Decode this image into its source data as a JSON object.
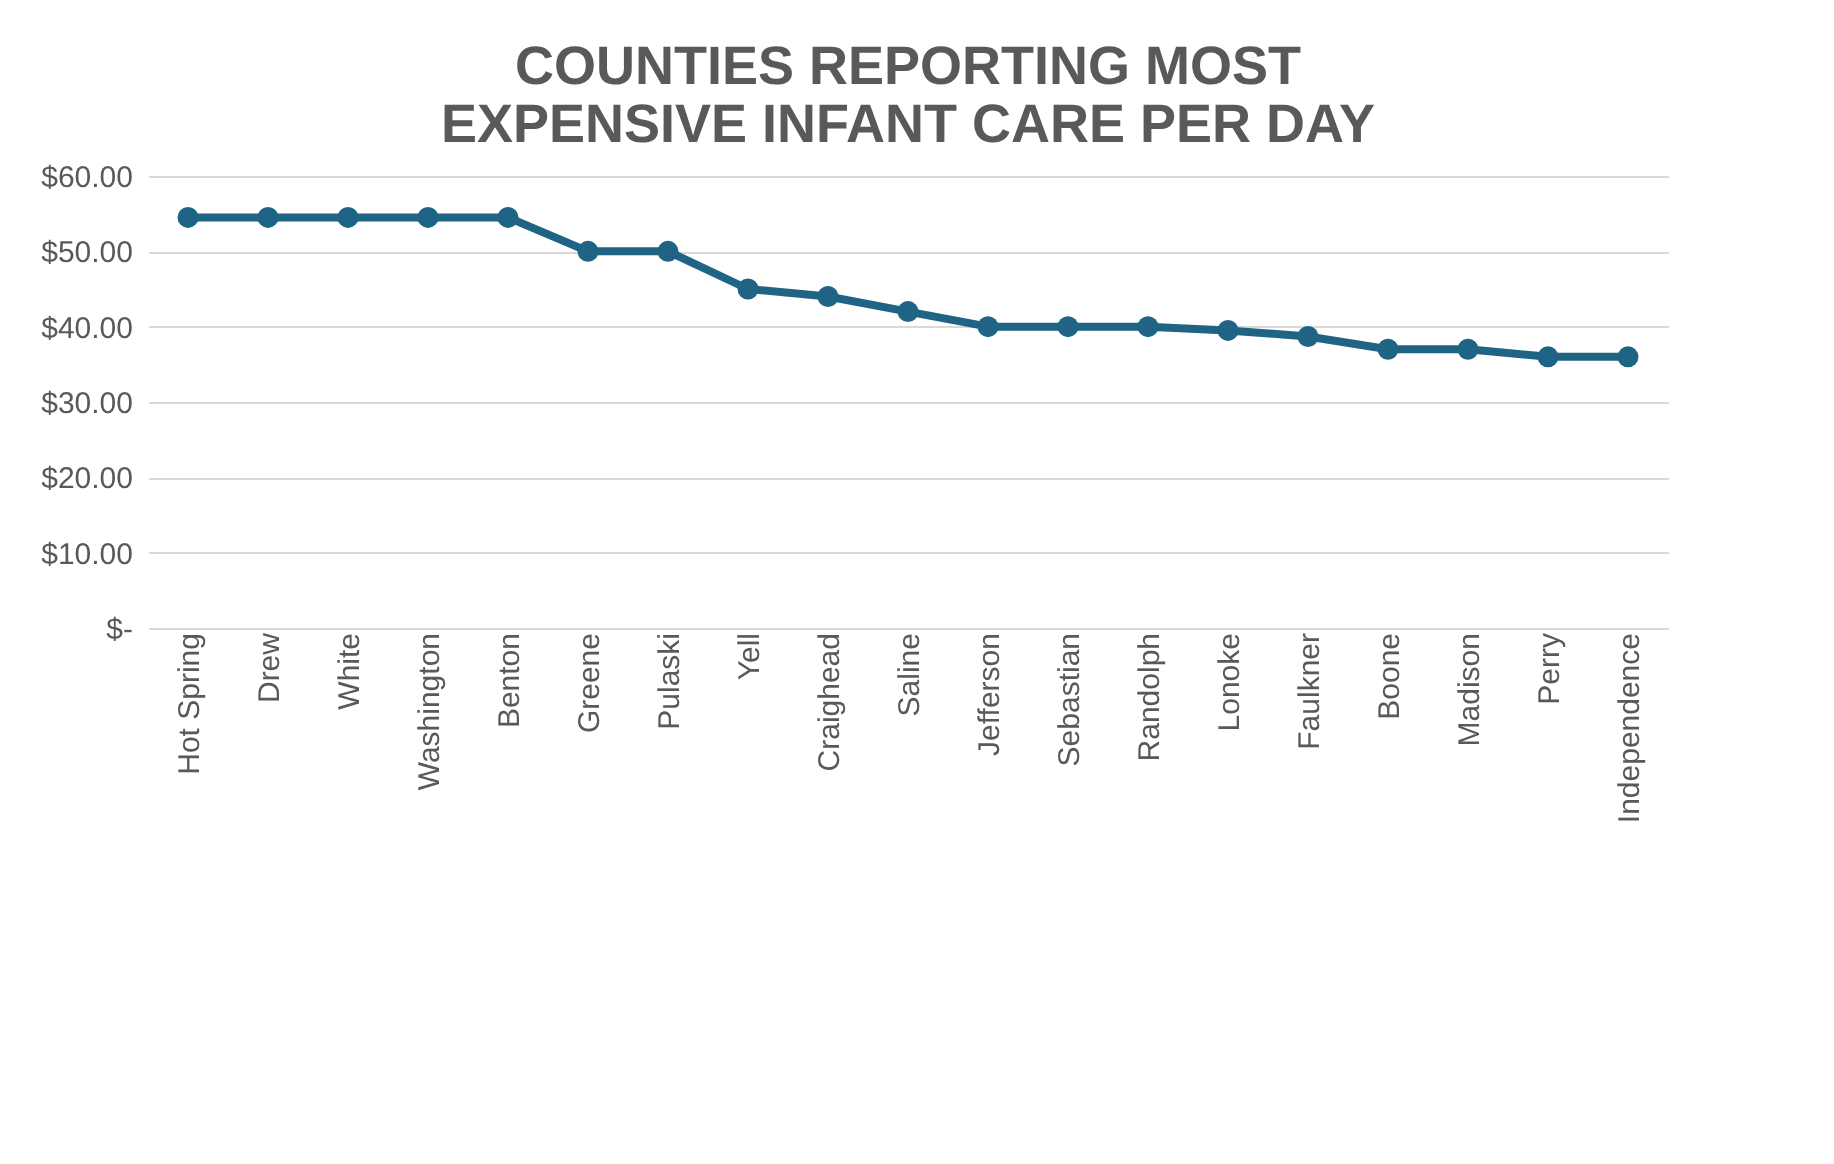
{
  "chart_data": {
    "type": "line",
    "title": [
      "COUNTIES REPORTING MOST",
      "EXPENSIVE INFANT CARE PER DAY"
    ],
    "categories": [
      "Hot Spring",
      "Drew",
      "White",
      "Washington",
      "Benton",
      "Greene",
      "Pulaski",
      "Yell",
      "Craighead",
      "Saline",
      "Jefferson",
      "Sebastian",
      "Randolph",
      "Lonoke",
      "Faulkner",
      "Boone",
      "Madison",
      "Perry",
      "Independence"
    ],
    "series": [
      {
        "color": "#1f6385",
        "values": [
          54.5,
          54.5,
          54.5,
          54.5,
          54.5,
          50,
          50,
          45,
          44,
          42,
          40,
          40,
          40,
          39.5,
          38.7,
          37,
          37,
          36,
          36
        ]
      }
    ],
    "ylim": [
      0,
      60
    ],
    "yticks": [
      {
        "value": 0,
        "label": "$-"
      },
      {
        "value": 10,
        "label": "$10.00"
      },
      {
        "value": 20,
        "label": "$20.00"
      },
      {
        "value": 30,
        "label": "$30.00"
      },
      {
        "value": 40,
        "label": "$40.00"
      },
      {
        "value": 50,
        "label": "$50.00"
      },
      {
        "value": 60,
        "label": "$60.00"
      }
    ],
    "grid": "y",
    "marker": "circle",
    "line_style": "solid"
  }
}
